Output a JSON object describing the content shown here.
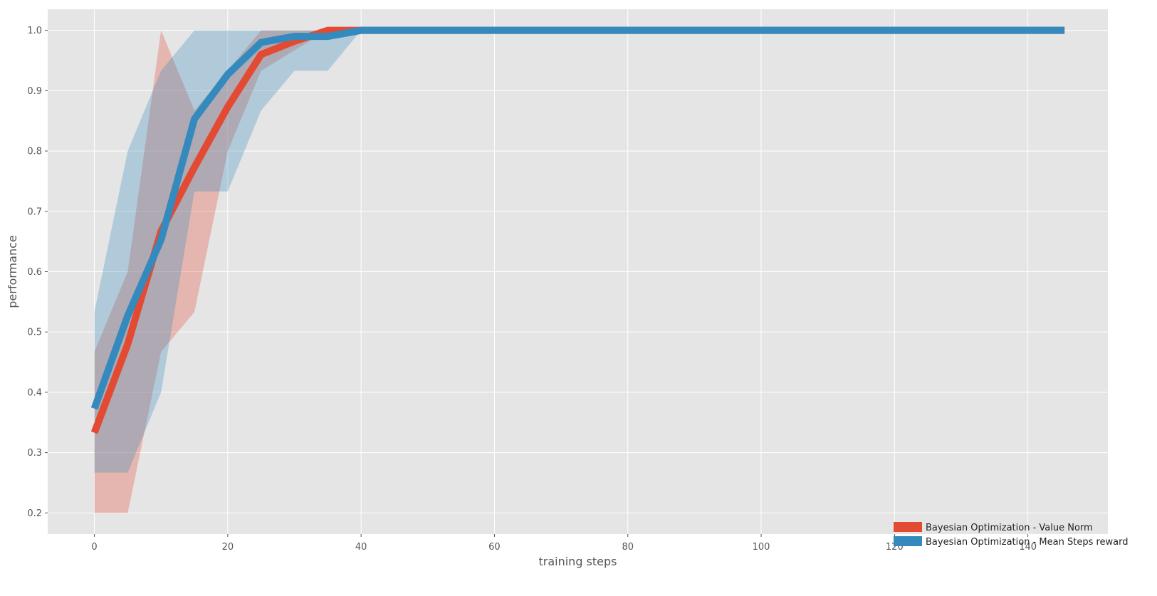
{
  "chart_data": {
    "type": "line",
    "title": "",
    "xlabel": "training steps",
    "ylabel": "performance",
    "xlim": [
      -7,
      152
    ],
    "ylim": [
      0.165,
      1.035
    ],
    "xticks": [
      0,
      20,
      40,
      60,
      80,
      100,
      120,
      140
    ],
    "yticks": [
      0.2,
      0.3,
      0.4,
      0.5,
      0.6,
      0.7,
      0.8,
      0.9,
      1.0
    ],
    "ytick_labels": [
      "0.2",
      "0.3",
      "0.4",
      "0.5",
      "0.6",
      "0.7",
      "0.8",
      "0.9",
      "1.0"
    ],
    "grid": true,
    "legend_position": "lower-right",
    "series": [
      {
        "name": "Bayesian Optimization - Value Norm",
        "color": "#E24A33",
        "band_color": "#E24A33",
        "x": [
          0,
          5,
          10,
          15,
          20,
          25,
          30,
          35,
          40,
          145.5
        ],
        "y": [
          0.333,
          0.48,
          0.667,
          0.773,
          0.873,
          0.96,
          0.982,
          1.0,
          1.0,
          1.0
        ],
        "lower": [
          0.2,
          0.2,
          0.467,
          0.533,
          0.8,
          0.933,
          0.967,
          1.0,
          1.0,
          1.0
        ],
        "upper": [
          0.467,
          0.6,
          1.0,
          0.867,
          0.933,
          1.0,
          1.0,
          1.0,
          1.0,
          1.0
        ]
      },
      {
        "name": "Bayesian Optimization - Mean Steps reward",
        "color": "#348ABD",
        "band_color": "#348ABD",
        "x": [
          0,
          5,
          10,
          15,
          20,
          25,
          30,
          35,
          40,
          145.5
        ],
        "y": [
          0.373,
          0.527,
          0.653,
          0.853,
          0.927,
          0.98,
          0.99,
          0.99,
          1.0,
          1.0
        ],
        "lower": [
          0.267,
          0.267,
          0.4,
          0.733,
          0.733,
          0.867,
          0.933,
          0.933,
          1.0,
          1.0
        ],
        "upper": [
          0.533,
          0.8,
          0.933,
          1.0,
          1.0,
          1.0,
          1.0,
          1.0,
          1.0,
          1.0
        ]
      }
    ]
  }
}
